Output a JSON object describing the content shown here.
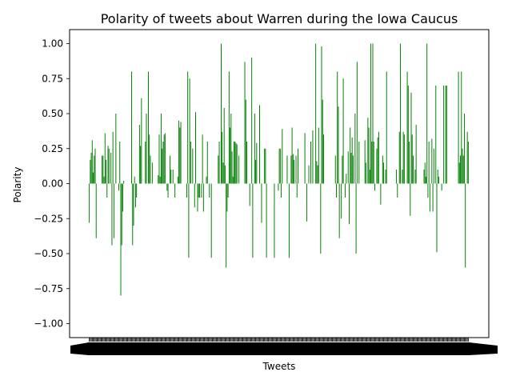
{
  "chart_data": {
    "type": "bar",
    "title": "Polarity of tweets about Warren during the Iowa Caucus",
    "xlabel": "Tweets",
    "ylabel": "Polarity",
    "ylim": [
      -1.1,
      1.1
    ],
    "y_ticks": [
      "−1.00",
      "−0.75",
      "−0.50",
      "−0.25",
      "0.00",
      "0.25",
      "0.50",
      "0.75",
      "1.00"
    ],
    "y_tick_values": [
      -1.0,
      -0.75,
      -0.5,
      -0.25,
      0.0,
      0.25,
      0.5,
      0.75,
      1.0
    ],
    "bar_color": "#008000",
    "grid": false,
    "values": [
      -0.28,
      0.17,
      0.22,
      0.31,
      0.08,
      0.2,
      0.25,
      -0.39,
      0.0,
      0.0,
      0.0,
      0.0,
      0.0,
      0.2,
      0.2,
      0.05,
      0.36,
      0.17,
      -0.1,
      0.27,
      0.25,
      0.0,
      0.22,
      -0.44,
      0.37,
      -0.39,
      0.0,
      0.5,
      0.0,
      0.0,
      -0.05,
      0.3,
      -0.8,
      -0.44,
      -0.2,
      0.02,
      0.0,
      0.0,
      0.0,
      0.0,
      0.0,
      0.0,
      0.0,
      0.8,
      -0.44,
      -0.3,
      0.05,
      -0.17,
      -0.1,
      0.0,
      0.0,
      0.42,
      0.27,
      0.61,
      0.0,
      0.0,
      0.0,
      0.3,
      0.5,
      0.0,
      0.8,
      0.35,
      0.2,
      0.0,
      0.15,
      0.0,
      0.0,
      0.0,
      0.0,
      0.0,
      0.06,
      0.35,
      0.05,
      0.5,
      0.25,
      0.3,
      0.35,
      0.36,
      0.0,
      -0.05,
      -0.1,
      0.0,
      0.2,
      0.1,
      0.0,
      0.1,
      0.0,
      -0.1,
      0.0,
      0.0,
      0.05,
      0.45,
      0.4,
      0.44,
      0.0,
      0.0,
      0.0,
      0.0,
      0.0,
      -0.1,
      0.8,
      -0.53,
      0.75,
      0.3,
      0.0,
      0.25,
      0.0,
      -0.17,
      0.51,
      0.0,
      -0.2,
      -0.1,
      -0.1,
      0.0,
      -0.1,
      0.35,
      -0.2,
      0.0,
      0.0,
      0.05,
      0.3,
      0.0,
      -0.1,
      0.0,
      -0.53,
      0.0,
      0.0,
      0.0,
      0.0,
      0.0,
      0.0,
      0.2,
      0.3,
      0.0,
      1.0,
      0.37,
      0.15,
      0.54,
      0.13,
      -0.6,
      -0.2,
      -0.1,
      0.8,
      0.4,
      0.5,
      0.23,
      0.05,
      0.3,
      0.3,
      0.29,
      0.28,
      0.0,
      0.2,
      0.0,
      0.0,
      0.0,
      0.0,
      0.0,
      0.87,
      0.6,
      0.3,
      0.0,
      0.0,
      -0.16,
      0.0,
      0.9,
      -0.53,
      0.0,
      0.5,
      0.17,
      0.29,
      0.0,
      0.0,
      0.56,
      0.0,
      -0.28,
      0.0,
      0.0,
      0.25,
      0.25,
      -0.53,
      0.0,
      0.0,
      0.0,
      0.0,
      0.0,
      0.0,
      0.0,
      -0.53,
      0.0,
      0.0,
      0.0,
      -0.05,
      0.25,
      0.25,
      -0.1,
      0.39,
      0.0,
      0.0,
      0.0,
      0.0,
      0.2,
      0.0,
      -0.53,
      0.0,
      0.2,
      0.4,
      0.21,
      0.17,
      0.0,
      0.2,
      -0.1,
      0.25,
      0.0,
      0.0,
      0.0,
      0.0,
      0.0,
      0.0,
      0.36,
      0.0,
      -0.27,
      0.0,
      0.13,
      0.0,
      0.3,
      0.0,
      0.38,
      0.0,
      0.0,
      1.0,
      0.16,
      0.13,
      0.4,
      0.0,
      -0.5,
      0.98,
      0.6,
      0.35,
      0.0,
      0.0,
      0.0,
      0.0,
      0.0,
      0.0,
      0.0,
      0.0,
      0.0,
      0.0,
      0.0,
      0.2,
      -0.1,
      0.8,
      0.55,
      -0.39,
      0.0,
      -0.25,
      0.2,
      0.75,
      0.0,
      -0.1,
      0.07,
      0.0,
      0.23,
      -0.29,
      0.4,
      0.22,
      0.33,
      0.2,
      0.0,
      0.5,
      -0.5,
      0.87,
      0.0,
      0.3,
      0.0,
      0.0,
      0.0,
      0.0,
      0.0,
      0.31,
      0.15,
      0.0,
      0.47,
      0.4,
      0.1,
      1.0,
      0.3,
      1.0,
      0.3,
      -0.05,
      0.0,
      0.25,
      0.33,
      0.37,
      0.0,
      -0.15,
      0.0,
      0.2,
      0.15,
      0.0,
      0.1,
      0.8,
      0.0,
      0.0,
      0.0,
      0.0,
      0.0,
      0.0,
      0.0,
      0.0,
      0.0,
      0.1,
      -0.1,
      0.0,
      0.37,
      1.0,
      0.0,
      0.1,
      0.37,
      0.35,
      0.0,
      0.0,
      0.8,
      0.7,
      0.3,
      -0.23,
      0.65,
      0.35,
      0.2,
      0.0,
      0.1,
      0.42,
      0.0,
      0.0,
      0.0,
      0.0,
      0.0,
      0.0,
      0.0,
      0.1,
      0.15,
      0.05,
      1.0,
      -0.1,
      0.3,
      -0.2,
      0.0,
      0.32,
      -0.2,
      0.25,
      0.0,
      0.7,
      -0.49,
      0.1,
      0.05,
      0.0,
      0.0,
      -0.05,
      0.0,
      0.7,
      0.0,
      0.7,
      0.7,
      0.0,
      0.0,
      0.0,
      0.0,
      0.0,
      0.0,
      0.0,
      0.0,
      0.0,
      0.0,
      0.0,
      0.8,
      0.15,
      0.2,
      0.8,
      0.25,
      0.2,
      0.5,
      -0.6,
      0.0,
      0.37,
      0.3
    ]
  }
}
